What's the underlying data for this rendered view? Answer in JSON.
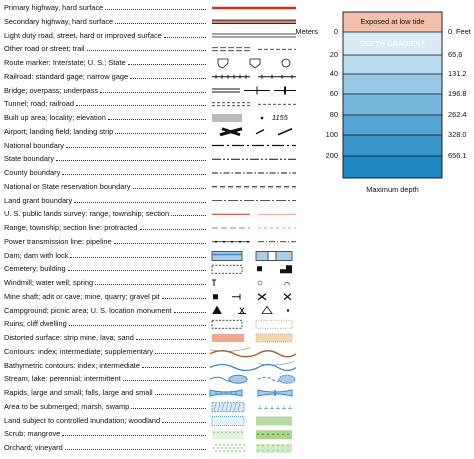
{
  "legend": {
    "items": [
      "Primary highway, hard surface",
      "Secondary highway, hard surface",
      "Light duty road, street, hard or improved surface",
      "Other road or street; trail",
      "Route marker: Interstate; U. S.; State",
      "Railroad: standard gage; narrow gage",
      "Bridge; overpass; underpass",
      "Tunnel; road; railroad",
      "Built up area; locality; elevation",
      "Airport; landing field; landing strip",
      "National boundary",
      "State boundary",
      "County boundary",
      "National or State reservation boundary",
      "Land grant boundary",
      "U. S. public lands survey: range, township; section",
      "Range, township; section line: protracted",
      "Power transmission line; pipeline",
      "Dam; dam with lock",
      "Cemetery; building",
      "Windmill; water well; spring",
      "Mine shaft; adit or cave; mine, quarry; gravel pit",
      "Campground; picnic area; U. S. location monument",
      "Ruins; cliff dwelling",
      "Distorted surface: strip mine, lava; sand",
      "Contours: index; intermediate; supplementary",
      "Bathymetric contours: index; intermediate",
      "Stream, lake: perennial; intermittent",
      "Rapids, large and small; falls, large and small",
      "Area to be submerged; marsh, swamp",
      "Land subject to controlled inundation; woodland",
      "Scrub; mangrove",
      "Orchard; vineyard"
    ],
    "elevation_sample": "1155"
  },
  "depth": {
    "exposed": "Exposed at low tide",
    "gradient": "DEPTH GRADIENT",
    "meters_label": "Meters",
    "feet_label": "Feet",
    "meters": [
      "0",
      "20",
      "40",
      "60",
      "80",
      "100",
      "200"
    ],
    "feet": [
      "0",
      "65.6",
      "131.2",
      "196.8",
      "262.4",
      "328.0",
      "656.1"
    ],
    "caption": "Maximum depth"
  }
}
